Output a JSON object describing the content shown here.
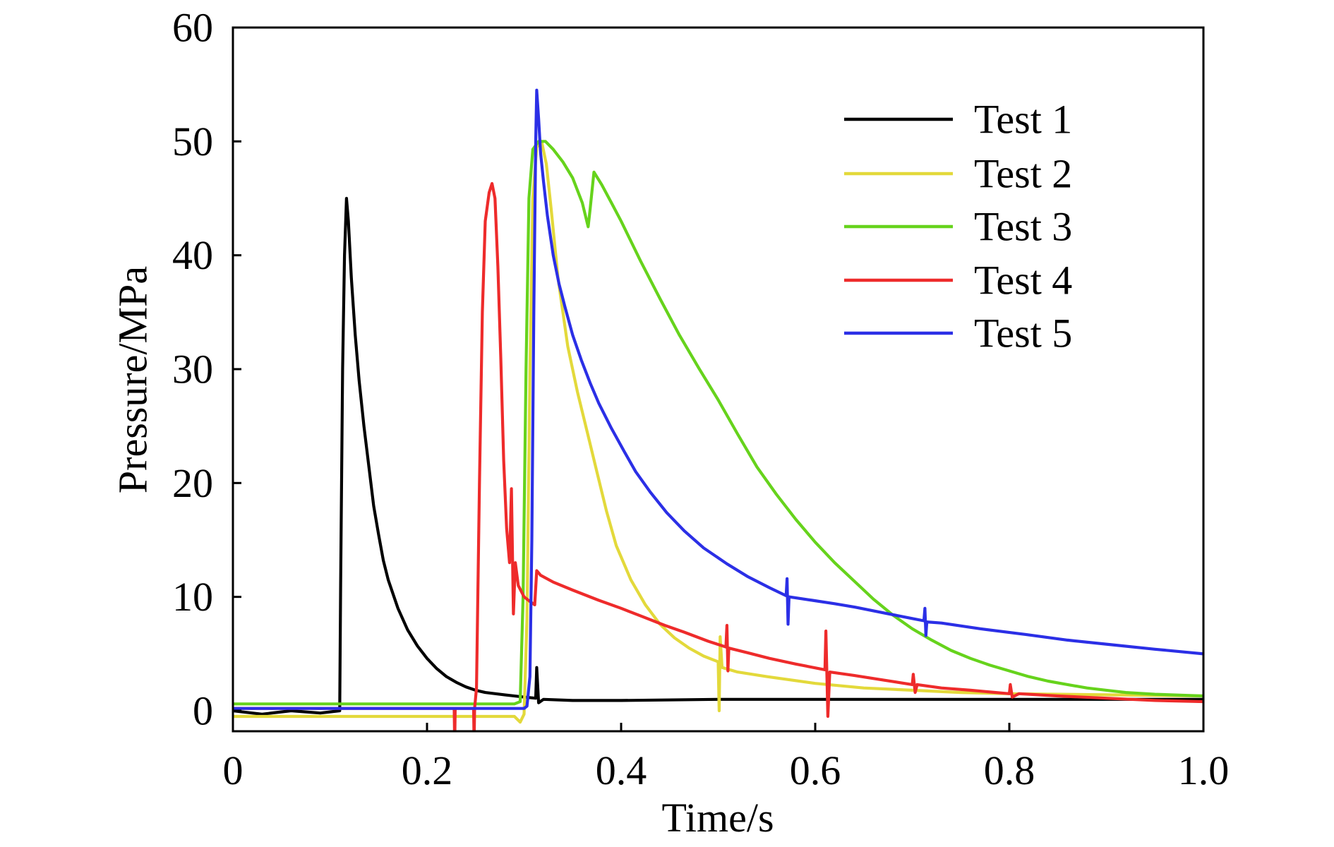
{
  "chart_data": {
    "type": "line",
    "title": "",
    "xlabel": "Time/s",
    "ylabel": "Pressure/MPa",
    "xlim": [
      0,
      1.0
    ],
    "ylim": [
      -1.8,
      60
    ],
    "grid": false,
    "legend_position": "top-right",
    "xticks": [
      {
        "value": 0,
        "label": "0"
      },
      {
        "value": 0.2,
        "label": "0.2"
      },
      {
        "value": 0.4,
        "label": "0.4"
      },
      {
        "value": 0.6,
        "label": "0.6"
      },
      {
        "value": 0.8,
        "label": "0.8"
      },
      {
        "value": 1.0,
        "label": "1.0"
      }
    ],
    "yticks": [
      {
        "value": 0,
        "label": "0"
      },
      {
        "value": 10,
        "label": "10"
      },
      {
        "value": 20,
        "label": "20"
      },
      {
        "value": 30,
        "label": "30"
      },
      {
        "value": 40,
        "label": "40"
      },
      {
        "value": 50,
        "label": "50"
      },
      {
        "value": 60,
        "label": "60"
      }
    ],
    "series": [
      {
        "name": "Test 1",
        "color": "#000000",
        "points": [
          [
            0,
            0
          ],
          [
            0.03,
            -0.3
          ],
          [
            0.06,
            0
          ],
          [
            0.09,
            -0.2
          ],
          [
            0.11,
            0
          ],
          [
            0.111,
            11
          ],
          [
            0.113,
            30
          ],
          [
            0.115,
            40
          ],
          [
            0.117,
            45
          ],
          [
            0.119,
            43
          ],
          [
            0.122,
            38
          ],
          [
            0.126,
            33
          ],
          [
            0.13,
            29
          ],
          [
            0.135,
            25
          ],
          [
            0.14,
            21.5
          ],
          [
            0.145,
            18
          ],
          [
            0.15,
            15.5
          ],
          [
            0.155,
            13.2
          ],
          [
            0.16,
            11.5
          ],
          [
            0.17,
            9
          ],
          [
            0.18,
            7.1
          ],
          [
            0.19,
            5.7
          ],
          [
            0.2,
            4.6
          ],
          [
            0.21,
            3.7
          ],
          [
            0.22,
            3
          ],
          [
            0.23,
            2.5
          ],
          [
            0.24,
            2.1
          ],
          [
            0.25,
            1.8
          ],
          [
            0.26,
            1.6
          ],
          [
            0.28,
            1.4
          ],
          [
            0.3,
            1.2
          ],
          [
            0.312,
            1.1
          ],
          [
            0.313,
            3.8
          ],
          [
            0.315,
            0.7
          ],
          [
            0.32,
            1.0
          ],
          [
            0.35,
            0.9
          ],
          [
            0.4,
            0.9
          ],
          [
            0.5,
            1.0
          ],
          [
            0.6,
            1.0
          ],
          [
            0.7,
            1.0
          ],
          [
            0.8,
            1.0
          ],
          [
            0.9,
            1.0
          ],
          [
            1.0,
            1.0
          ]
        ]
      },
      {
        "name": "Test 2",
        "color": "#e3d93b",
        "points": [
          [
            0,
            -0.5
          ],
          [
            0.1,
            -0.5
          ],
          [
            0.2,
            -0.5
          ],
          [
            0.29,
            -0.5
          ],
          [
            0.296,
            -1.0
          ],
          [
            0.3,
            -0.3
          ],
          [
            0.303,
            8
          ],
          [
            0.306,
            30
          ],
          [
            0.309,
            45
          ],
          [
            0.313,
            49.5
          ],
          [
            0.318,
            50
          ],
          [
            0.323,
            48
          ],
          [
            0.328,
            44
          ],
          [
            0.335,
            38
          ],
          [
            0.345,
            32
          ],
          [
            0.355,
            28
          ],
          [
            0.365,
            24.5
          ],
          [
            0.375,
            21
          ],
          [
            0.385,
            17.5
          ],
          [
            0.395,
            14.5
          ],
          [
            0.41,
            11.5
          ],
          [
            0.425,
            9.3
          ],
          [
            0.44,
            7.6
          ],
          [
            0.455,
            6.4
          ],
          [
            0.47,
            5.5
          ],
          [
            0.485,
            4.8
          ],
          [
            0.5,
            4.3
          ],
          [
            0.501,
            0
          ],
          [
            0.502,
            6.5
          ],
          [
            0.504,
            3.8
          ],
          [
            0.52,
            3.4
          ],
          [
            0.55,
            3
          ],
          [
            0.6,
            2.4
          ],
          [
            0.65,
            2.0
          ],
          [
            0.7,
            1.8
          ],
          [
            0.75,
            1.6
          ],
          [
            0.8,
            1.5
          ],
          [
            0.9,
            1.4
          ],
          [
            1.0,
            1.3
          ]
        ]
      },
      {
        "name": "Test 3",
        "color": "#66d31c",
        "points": [
          [
            0,
            0.6
          ],
          [
            0.1,
            0.6
          ],
          [
            0.2,
            0.6
          ],
          [
            0.29,
            0.6
          ],
          [
            0.296,
            0.8
          ],
          [
            0.299,
            10
          ],
          [
            0.302,
            30
          ],
          [
            0.305,
            45
          ],
          [
            0.309,
            49.3
          ],
          [
            0.315,
            50
          ],
          [
            0.322,
            50
          ],
          [
            0.33,
            49.3
          ],
          [
            0.34,
            48.2
          ],
          [
            0.35,
            46.8
          ],
          [
            0.36,
            44.6
          ],
          [
            0.366,
            42.5
          ],
          [
            0.368,
            44
          ],
          [
            0.372,
            47.3
          ],
          [
            0.38,
            46.2
          ],
          [
            0.39,
            44.6
          ],
          [
            0.4,
            43
          ],
          [
            0.42,
            39.5
          ],
          [
            0.44,
            36.2
          ],
          [
            0.46,
            33
          ],
          [
            0.48,
            30.1
          ],
          [
            0.5,
            27.3
          ],
          [
            0.52,
            24.3
          ],
          [
            0.54,
            21.4
          ],
          [
            0.56,
            19
          ],
          [
            0.58,
            16.8
          ],
          [
            0.6,
            14.8
          ],
          [
            0.62,
            13
          ],
          [
            0.64,
            11.4
          ],
          [
            0.66,
            9.8
          ],
          [
            0.68,
            8.4
          ],
          [
            0.7,
            7.2
          ],
          [
            0.72,
            6.2
          ],
          [
            0.74,
            5.3
          ],
          [
            0.76,
            4.6
          ],
          [
            0.78,
            4.0
          ],
          [
            0.8,
            3.5
          ],
          [
            0.82,
            3.0
          ],
          [
            0.84,
            2.6
          ],
          [
            0.86,
            2.3
          ],
          [
            0.88,
            2.0
          ],
          [
            0.9,
            1.8
          ],
          [
            0.92,
            1.6
          ],
          [
            0.95,
            1.45
          ],
          [
            1.0,
            1.3
          ]
        ]
      },
      {
        "name": "Test 4",
        "color": "#ee2b2b",
        "points": [
          [
            0,
            0.2
          ],
          [
            0.1,
            0.2
          ],
          [
            0.2,
            0.2
          ],
          [
            0.228,
            0.2
          ],
          [
            0.2285,
            -3
          ],
          [
            0.229,
            0.2
          ],
          [
            0.248,
            0.2
          ],
          [
            0.2485,
            -3
          ],
          [
            0.249,
            0.2
          ],
          [
            0.251,
            2
          ],
          [
            0.254,
            20
          ],
          [
            0.257,
            35
          ],
          [
            0.26,
            43
          ],
          [
            0.264,
            45.5
          ],
          [
            0.267,
            46.3
          ],
          [
            0.27,
            45
          ],
          [
            0.273,
            39
          ],
          [
            0.276,
            31
          ],
          [
            0.279,
            22
          ],
          [
            0.282,
            16
          ],
          [
            0.285,
            13
          ],
          [
            0.287,
            19.5
          ],
          [
            0.289,
            8.5
          ],
          [
            0.291,
            13
          ],
          [
            0.294,
            11
          ],
          [
            0.3,
            10
          ],
          [
            0.306,
            9.6
          ],
          [
            0.311,
            9.3
          ],
          [
            0.313,
            12.3
          ],
          [
            0.317,
            11.9
          ],
          [
            0.33,
            11.3
          ],
          [
            0.35,
            10.6
          ],
          [
            0.377,
            9.7
          ],
          [
            0.4,
            9
          ],
          [
            0.421,
            8.3
          ],
          [
            0.445,
            7.5
          ],
          [
            0.465,
            6.9
          ],
          [
            0.49,
            6.1
          ],
          [
            0.508,
            5.6
          ],
          [
            0.509,
            7.5
          ],
          [
            0.51,
            3.5
          ],
          [
            0.511,
            5.5
          ],
          [
            0.53,
            5.1
          ],
          [
            0.553,
            4.6
          ],
          [
            0.58,
            4.1
          ],
          [
            0.61,
            3.6
          ],
          [
            0.611,
            7.0
          ],
          [
            0.613,
            -0.5
          ],
          [
            0.615,
            3.4
          ],
          [
            0.64,
            3.1
          ],
          [
            0.67,
            2.7
          ],
          [
            0.7,
            2.3
          ],
          [
            0.701,
            3.2
          ],
          [
            0.703,
            1.6
          ],
          [
            0.705,
            2.3
          ],
          [
            0.73,
            2.0
          ],
          [
            0.76,
            1.8
          ],
          [
            0.8,
            1.5
          ],
          [
            0.801,
            2.3
          ],
          [
            0.803,
            1.2
          ],
          [
            0.81,
            1.5
          ],
          [
            0.85,
            1.3
          ],
          [
            0.9,
            1.1
          ],
          [
            0.95,
            0.9
          ],
          [
            1.0,
            0.8
          ]
        ]
      },
      {
        "name": "Test 5",
        "color": "#2b2fe6",
        "points": [
          [
            0,
            0.2
          ],
          [
            0.1,
            0.2
          ],
          [
            0.2,
            0.2
          ],
          [
            0.3,
            0.2
          ],
          [
            0.303,
            0.4
          ],
          [
            0.306,
            3
          ],
          [
            0.308,
            15
          ],
          [
            0.31,
            35
          ],
          [
            0.312,
            50
          ],
          [
            0.313,
            54.5
          ],
          [
            0.315,
            52
          ],
          [
            0.317,
            49
          ],
          [
            0.32,
            46.5
          ],
          [
            0.324,
            43.5
          ],
          [
            0.33,
            40
          ],
          [
            0.336,
            37.5
          ],
          [
            0.342,
            35.5
          ],
          [
            0.35,
            33
          ],
          [
            0.359,
            30.8
          ],
          [
            0.368,
            28.8
          ],
          [
            0.377,
            27
          ],
          [
            0.39,
            24.8
          ],
          [
            0.403,
            22.8
          ],
          [
            0.415,
            21
          ],
          [
            0.43,
            19.2
          ],
          [
            0.447,
            17.4
          ],
          [
            0.465,
            15.8
          ],
          [
            0.485,
            14.3
          ],
          [
            0.509,
            12.9
          ],
          [
            0.53,
            11.8
          ],
          [
            0.553,
            10.8
          ],
          [
            0.57,
            10.1
          ],
          [
            0.571,
            11.6
          ],
          [
            0.572,
            7.6
          ],
          [
            0.573,
            10.0
          ],
          [
            0.597,
            9.7
          ],
          [
            0.62,
            9.4
          ],
          [
            0.641,
            9.1
          ],
          [
            0.67,
            8.6
          ],
          [
            0.7,
            8.1
          ],
          [
            0.712,
            7.9
          ],
          [
            0.713,
            9.0
          ],
          [
            0.714,
            6.6
          ],
          [
            0.715,
            7.8
          ],
          [
            0.73,
            7.7
          ],
          [
            0.77,
            7.2
          ],
          [
            0.817,
            6.7
          ],
          [
            0.86,
            6.2
          ],
          [
            0.905,
            5.8
          ],
          [
            0.95,
            5.4
          ],
          [
            1.0,
            5.0
          ]
        ]
      }
    ]
  }
}
